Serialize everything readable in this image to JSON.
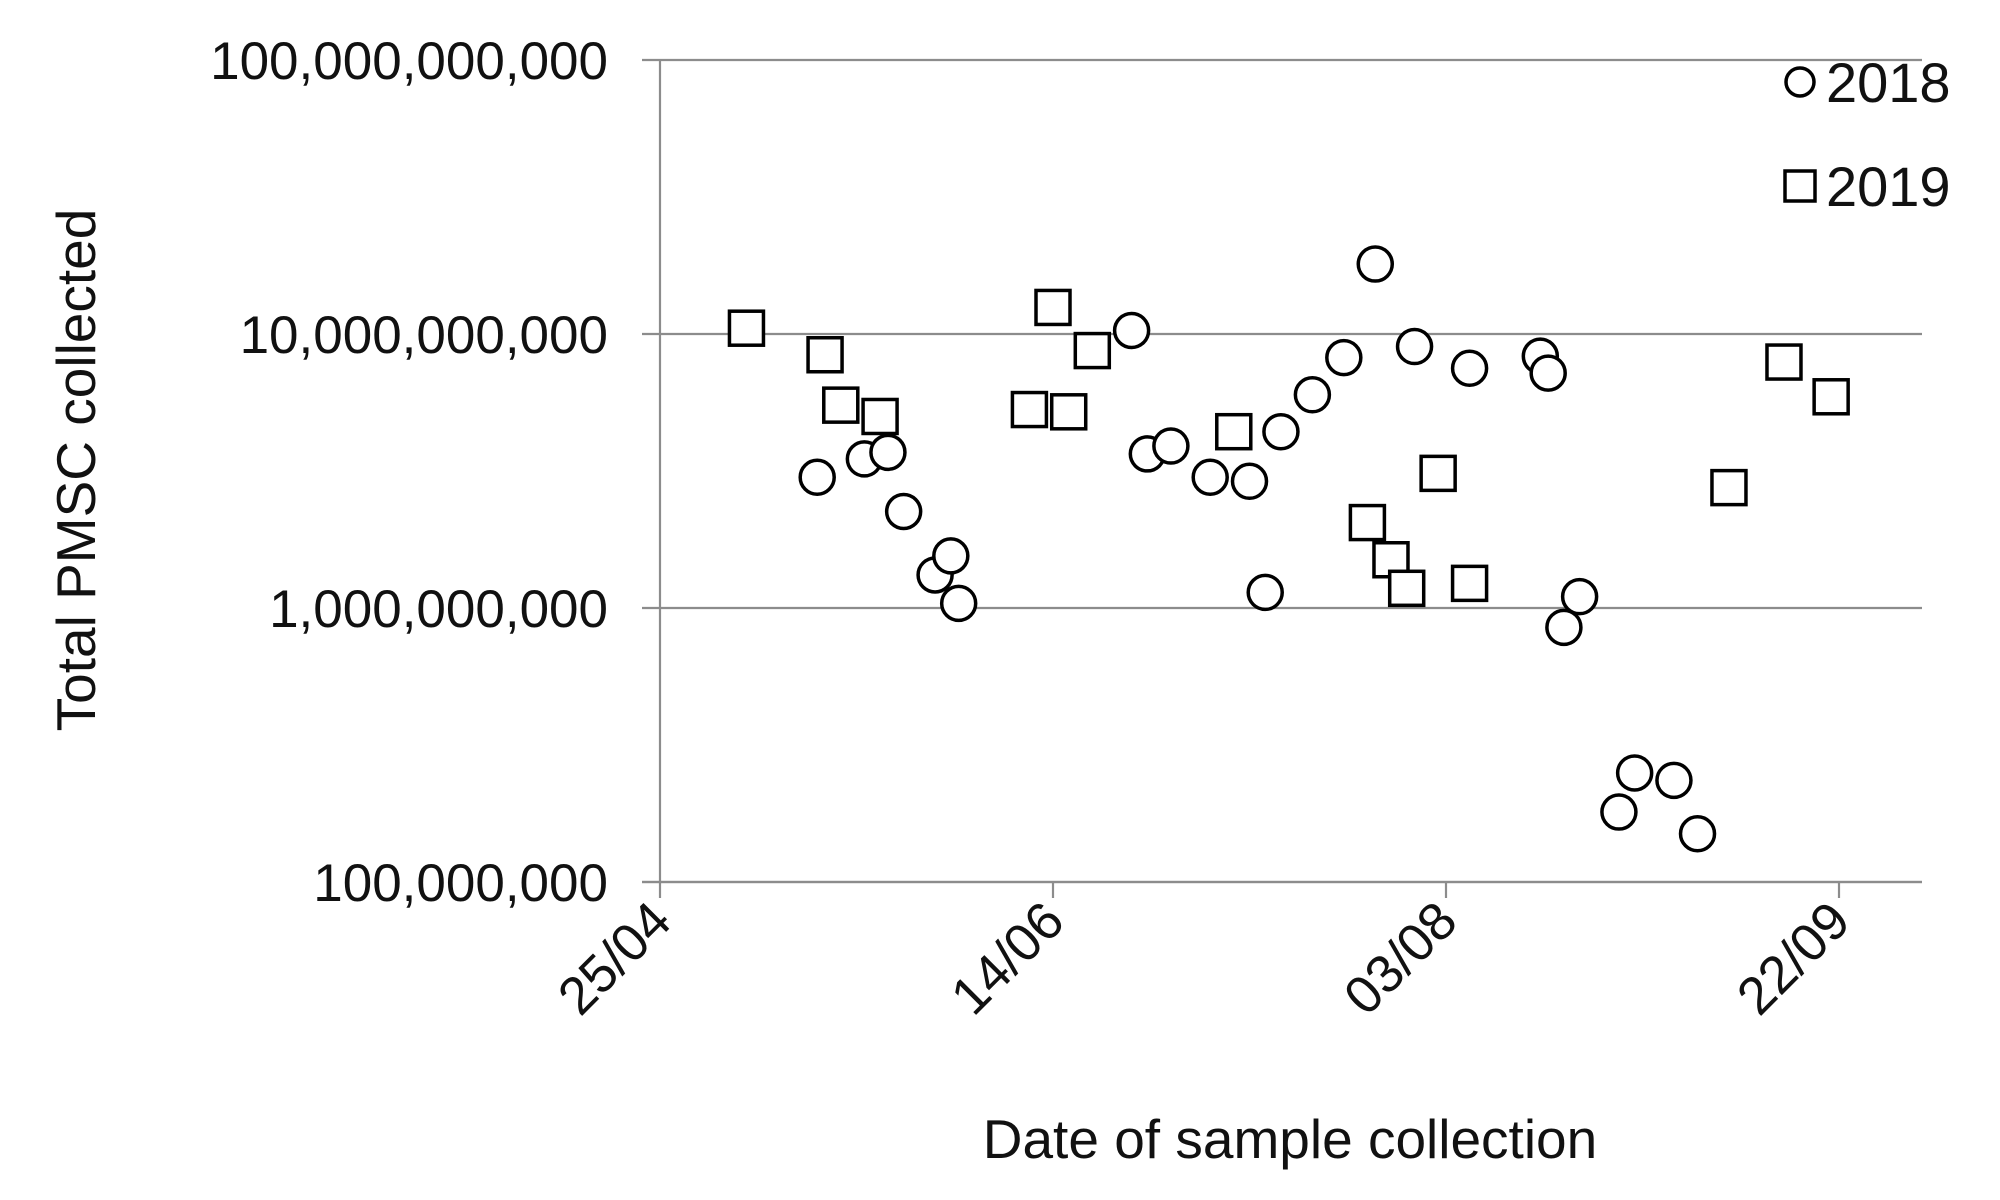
{
  "chart_data": {
    "type": "scatter",
    "title": "",
    "xlabel": "Date of sample collection",
    "ylabel": "Total PMSC collected",
    "y_scale": "log",
    "ylim": [
      100000000,
      100000000000
    ],
    "xlim": [
      "25/04",
      "30/09"
    ],
    "x_ticks": [
      "25/04",
      "14/06",
      "03/08",
      "22/09"
    ],
    "y_ticks": [
      {
        "value": 100000000,
        "label": "100,000,000"
      },
      {
        "value": 1000000000,
        "label": "1,000,000,000"
      },
      {
        "value": 10000000000,
        "label": "10,000,000,000"
      },
      {
        "value": 100000000000,
        "label": "100,000,000,000"
      }
    ],
    "grid": "horizontal",
    "legend_position": "top-right",
    "series": [
      {
        "name": "2018",
        "marker": "circle",
        "color": "#000000",
        "points": [
          {
            "x": "15/05",
            "y": 3000000000
          },
          {
            "x": "21/05",
            "y": 3500000000
          },
          {
            "x": "24/05",
            "y": 3700000000
          },
          {
            "x": "26/05",
            "y": 2250000000
          },
          {
            "x": "30/05",
            "y": 1320000000
          },
          {
            "x": "01/06",
            "y": 1550000000
          },
          {
            "x": "02/06",
            "y": 1040000000
          },
          {
            "x": "24/06",
            "y": 10300000000
          },
          {
            "x": "26/06",
            "y": 3650000000
          },
          {
            "x": "29/06",
            "y": 3900000000
          },
          {
            "x": "04/07",
            "y": 3000000000
          },
          {
            "x": "09/07",
            "y": 2900000000
          },
          {
            "x": "11/07",
            "y": 1140000000
          },
          {
            "x": "13/07",
            "y": 4400000000
          },
          {
            "x": "17/07",
            "y": 6000000000
          },
          {
            "x": "21/07",
            "y": 8200000000
          },
          {
            "x": "25/07",
            "y": 18000000000
          },
          {
            "x": "30/07",
            "y": 9000000000
          },
          {
            "x": "06/08",
            "y": 7500000000
          },
          {
            "x": "15/08",
            "y": 8300000000
          },
          {
            "x": "16/08",
            "y": 7200000000
          },
          {
            "x": "18/08",
            "y": 850000000
          },
          {
            "x": "20/08",
            "y": 1100000000
          },
          {
            "x": "25/08",
            "y": 180000000
          },
          {
            "x": "27/08",
            "y": 250000000
          },
          {
            "x": "01/09",
            "y": 235000000
          },
          {
            "x": "04/09",
            "y": 150000000
          }
        ]
      },
      {
        "name": "2019",
        "marker": "square",
        "color": "#000000",
        "points": [
          {
            "x": "06/05",
            "y": 10500000000
          },
          {
            "x": "16/05",
            "y": 8400000000
          },
          {
            "x": "18/05",
            "y": 5500000000
          },
          {
            "x": "23/05",
            "y": 5000000000
          },
          {
            "x": "11/06",
            "y": 5300000000
          },
          {
            "x": "14/06",
            "y": 12500000000
          },
          {
            "x": "16/06",
            "y": 5200000000
          },
          {
            "x": "19/06",
            "y": 8700000000
          },
          {
            "x": "07/07",
            "y": 4400000000
          },
          {
            "x": "24/07",
            "y": 2050000000
          },
          {
            "x": "27/07",
            "y": 1500000000
          },
          {
            "x": "29/07",
            "y": 1180000000
          },
          {
            "x": "02/08",
            "y": 3100000000
          },
          {
            "x": "06/08",
            "y": 1230000000
          },
          {
            "x": "08/09",
            "y": 2750000000
          },
          {
            "x": "15/09",
            "y": 7900000000
          },
          {
            "x": "21/09",
            "y": 5900000000
          }
        ]
      }
    ]
  }
}
